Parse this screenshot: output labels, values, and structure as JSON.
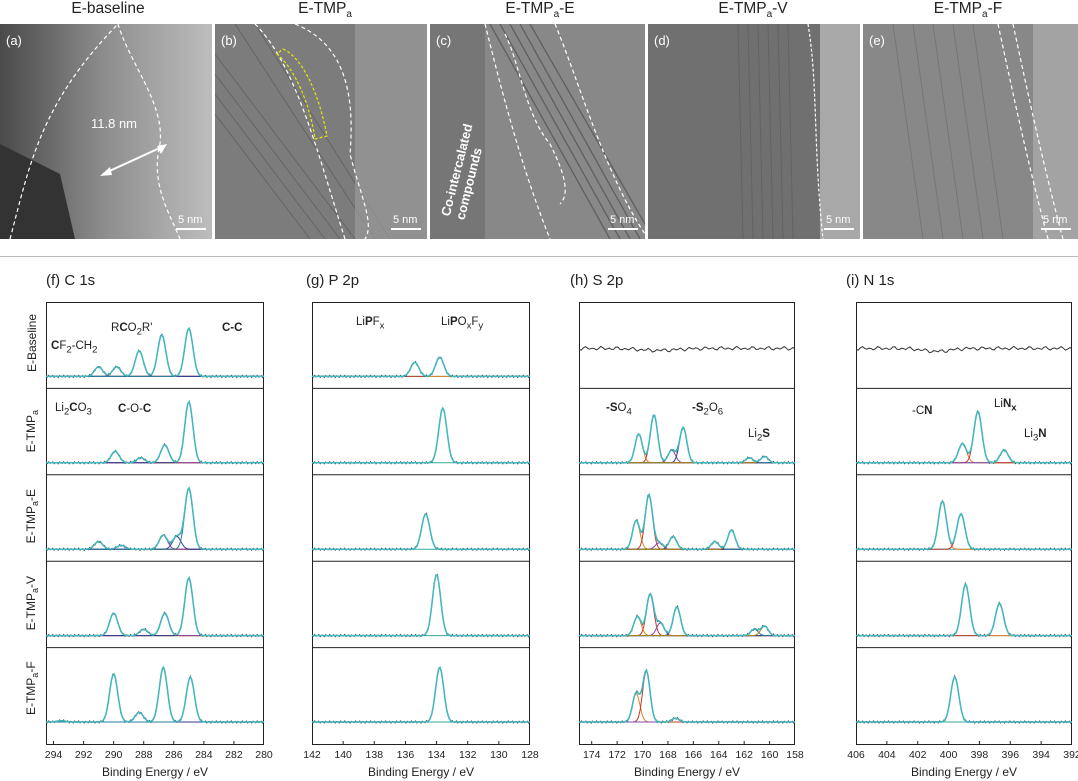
{
  "tem": {
    "headers": [
      "E-baseline",
      "E-TMPa",
      "E-TMPa-E",
      "E-TMPa-V",
      "E-TMPa-F"
    ],
    "panels": [
      {
        "letter": "(a)",
        "scale": "5 nm",
        "measure": "11.8 nm"
      },
      {
        "letter": "(b)",
        "scale": "5 nm"
      },
      {
        "letter": "(c)",
        "scale": "5 nm",
        "note": "Co-intercalated compounds"
      },
      {
        "letter": "(d)",
        "scale": "5 nm"
      },
      {
        "letter": "(e)",
        "scale": "5 nm"
      }
    ]
  },
  "xps": {
    "titles": [
      "(f)  C 1s",
      "(g)  P 2p",
      "(h)  S 2p",
      "(i)  N 1s"
    ],
    "row_labels": [
      "E-Baseline",
      "E-TMPa",
      "E-TMPa-E",
      "E-TMPa-V",
      "E-TMPa-F"
    ],
    "xlabel": "Binding Energy / eV",
    "ticks": {
      "c": [
        "294",
        "292",
        "290",
        "288",
        "286",
        "284",
        "282",
        "280"
      ],
      "p": [
        "142",
        "140",
        "138",
        "136",
        "134",
        "132",
        "130",
        "128"
      ],
      "s": [
        "174",
        "172",
        "170",
        "168",
        "166",
        "164",
        "162",
        "160",
        "158"
      ],
      "n": [
        "406",
        "404",
        "402",
        "400",
        "398",
        "396",
        "394",
        "392"
      ]
    },
    "annotations": {
      "cf2": "CF2-CH2",
      "rco2r": "RCO2R'",
      "cc": "C-C",
      "li2co3": "Li2CO3",
      "coc": "C-O-C",
      "lipfx": "LiPFx",
      "lipoxfy": "LiPOxFy",
      "so4": "-SO4",
      "s2o6": "-S2O6",
      "li2s": "Li2S",
      "cn": "-CN",
      "linx": "LiNx",
      "li3n": "Li3N"
    }
  },
  "chart_data": [
    {
      "type": "line",
      "title": "C 1s",
      "xlabel": "Binding Energy / eV",
      "xlim": [
        294.5,
        280
      ],
      "series": [
        {
          "name": "E-Baseline",
          "peaks": [
            [
              291,
              0.15
            ],
            [
              289.8,
              0.15
            ],
            [
              288.3,
              0.4
            ],
            [
              286.8,
              0.65
            ],
            [
              285,
              0.75
            ]
          ]
        },
        {
          "name": "E-TMPa",
          "peaks": [
            [
              289.9,
              0.18
            ],
            [
              288.2,
              0.08
            ],
            [
              286.6,
              0.28
            ],
            [
              285,
              0.95
            ]
          ]
        },
        {
          "name": "E-TMPa-E",
          "peaks": [
            [
              291,
              0.12
            ],
            [
              289.5,
              0.06
            ],
            [
              286.7,
              0.22
            ],
            [
              285.8,
              0.2
            ],
            [
              285,
              0.95
            ]
          ]
        },
        {
          "name": "E-TMPa-V",
          "peaks": [
            [
              290,
              0.35
            ],
            [
              288,
              0.1
            ],
            [
              286.6,
              0.35
            ],
            [
              285,
              0.9
            ]
          ]
        },
        {
          "name": "E-TMPa-F",
          "peaks": [
            [
              293.5,
              0.02
            ],
            [
              290,
              0.75
            ],
            [
              288.3,
              0.15
            ],
            [
              286.7,
              0.85
            ],
            [
              284.9,
              0.7
            ]
          ]
        }
      ]
    },
    {
      "type": "line",
      "title": "P 2p",
      "xlabel": "Binding Energy / eV",
      "xlim": [
        142,
        128
      ],
      "series": [
        {
          "name": "E-Baseline",
          "peaks": [
            [
              135.4,
              0.22
            ],
            [
              133.8,
              0.3
            ]
          ]
        },
        {
          "name": "E-TMPa",
          "peaks": [
            [
              133.6,
              0.85
            ]
          ]
        },
        {
          "name": "E-TMPa-E",
          "peaks": [
            [
              134.7,
              0.55
            ]
          ]
        },
        {
          "name": "E-TMPa-V",
          "peaks": [
            [
              134,
              0.95
            ]
          ]
        },
        {
          "name": "E-TMPa-F",
          "peaks": [
            [
              133.8,
              0.85
            ]
          ]
        }
      ]
    },
    {
      "type": "line",
      "title": "S 2p",
      "xlabel": "Binding Energy / eV",
      "xlim": [
        175,
        158
      ],
      "series": [
        {
          "name": "E-Baseline",
          "peaks": []
        },
        {
          "name": "E-TMPa",
          "peaks": [
            [
              170.3,
              0.45
            ],
            [
              169.1,
              0.75
            ],
            [
              167.7,
              0.2
            ],
            [
              166.8,
              0.55
            ],
            [
              161.6,
              0.08
            ],
            [
              160.4,
              0.1
            ]
          ]
        },
        {
          "name": "E-TMPa-E",
          "peaks": [
            [
              170.5,
              0.45
            ],
            [
              169.5,
              0.85
            ],
            [
              168.7,
              0.1
            ],
            [
              167.6,
              0.2
            ],
            [
              164.3,
              0.12
            ],
            [
              163,
              0.3
            ]
          ]
        },
        {
          "name": "E-TMPa-V",
          "peaks": [
            [
              170.4,
              0.3
            ],
            [
              169.4,
              0.65
            ],
            [
              168.6,
              0.2
            ],
            [
              167.3,
              0.45
            ],
            [
              161.2,
              0.1
            ],
            [
              160.4,
              0.15
            ]
          ]
        },
        {
          "name": "E-TMPa-F",
          "peaks": [
            [
              170.5,
              0.45
            ],
            [
              169.7,
              0.8
            ],
            [
              167.4,
              0.06
            ]
          ]
        }
      ]
    },
    {
      "type": "line",
      "title": "N 1s",
      "xlabel": "Binding Energy / eV",
      "xlim": [
        406,
        392
      ],
      "series": [
        {
          "name": "E-Baseline",
          "peaks": []
        },
        {
          "name": "E-TMPa",
          "peaks": [
            [
              399.1,
              0.3
            ],
            [
              398.1,
              0.8
            ],
            [
              396.4,
              0.2
            ]
          ]
        },
        {
          "name": "E-TMPa-E",
          "peaks": [
            [
              400.4,
              0.75
            ],
            [
              399.2,
              0.55
            ]
          ]
        },
        {
          "name": "E-TMPa-V",
          "peaks": [
            [
              398.9,
              0.8
            ],
            [
              396.7,
              0.5
            ]
          ]
        },
        {
          "name": "E-TMPa-F",
          "peaks": [
            [
              399.6,
              0.7
            ]
          ]
        }
      ]
    }
  ]
}
